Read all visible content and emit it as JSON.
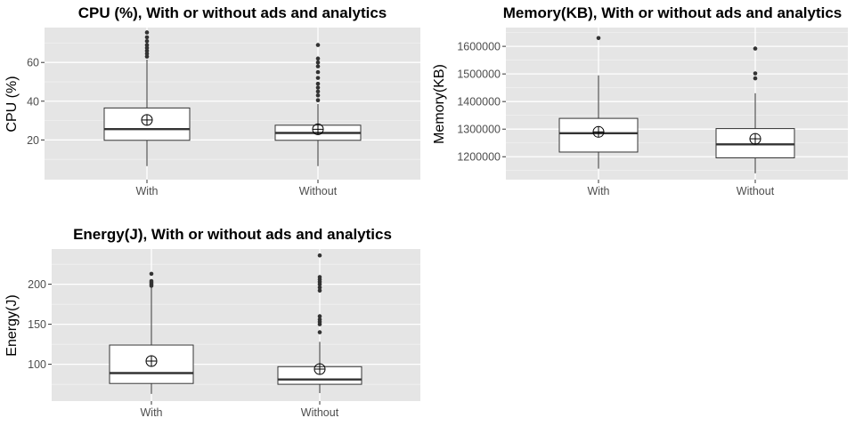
{
  "chart_data": [
    {
      "type": "boxplot",
      "title": "CPU (%), With or without ads and analytics",
      "xlabel": "",
      "ylabel": "CPU (%)",
      "ylim": [
        -0.5,
        78
      ],
      "yticks": [
        20,
        40,
        60
      ],
      "categories": [
        "With",
        "Without"
      ],
      "grid": true,
      "boxes": [
        {
          "category": "With",
          "whisker_low": 6.5,
          "q1": 19.8,
          "median": 25.6,
          "q3": 36.5,
          "whisker_high": 61.5,
          "mean": 30.3,
          "outliers": [
            63,
            64.5,
            66,
            67.5,
            69,
            71,
            73,
            75.5
          ]
        },
        {
          "category": "Without",
          "whisker_low": 6.5,
          "q1": 19.8,
          "median": 23.6,
          "q3": 27.6,
          "whisker_high": 38.5,
          "mean": 25.5,
          "outliers": [
            40.5,
            43,
            45,
            47,
            49,
            52,
            55,
            58,
            60,
            62,
            69
          ]
        }
      ]
    },
    {
      "type": "boxplot",
      "title": "Memory(KB), With or without ads and analytics",
      "xlabel": "",
      "ylabel": "Memory(KB)",
      "ylim": [
        1117000,
        1668000
      ],
      "yticks": [
        1200000,
        1300000,
        1400000,
        1500000,
        1600000
      ],
      "categories": [
        "With",
        "Without"
      ],
      "grid": true,
      "boxes": [
        {
          "category": "With",
          "whisker_low": 1157000,
          "q1": 1217000,
          "median": 1285000,
          "q3": 1339000,
          "whisker_high": 1495000,
          "mean": 1290000,
          "outliers": [
            1630000
          ]
        },
        {
          "category": "Without",
          "whisker_low": 1140000,
          "q1": 1196000,
          "median": 1245000,
          "q3": 1302000,
          "whisker_high": 1430000,
          "mean": 1265000,
          "outliers": [
            1484000,
            1502000,
            1592000
          ]
        }
      ]
    },
    {
      "type": "boxplot",
      "title": "Energy(J), With or without ads and analytics",
      "xlabel": "",
      "ylabel": "Energy(J)",
      "ylim": [
        54,
        244
      ],
      "yticks": [
        100,
        150,
        200
      ],
      "categories": [
        "With",
        "Without"
      ],
      "grid": true,
      "boxes": [
        {
          "category": "With",
          "whisker_low": 63,
          "q1": 76,
          "median": 89,
          "q3": 124,
          "whisker_high": 196,
          "mean": 104,
          "outliers": [
            198,
            200,
            202,
            204,
            213
          ]
        },
        {
          "category": "Without",
          "whisker_low": 64,
          "q1": 75,
          "median": 81,
          "q3": 97,
          "whisker_high": 128,
          "mean": 94,
          "outliers": [
            140,
            150,
            153,
            156,
            160,
            192,
            196,
            200,
            203,
            206,
            209,
            236
          ]
        }
      ]
    }
  ]
}
